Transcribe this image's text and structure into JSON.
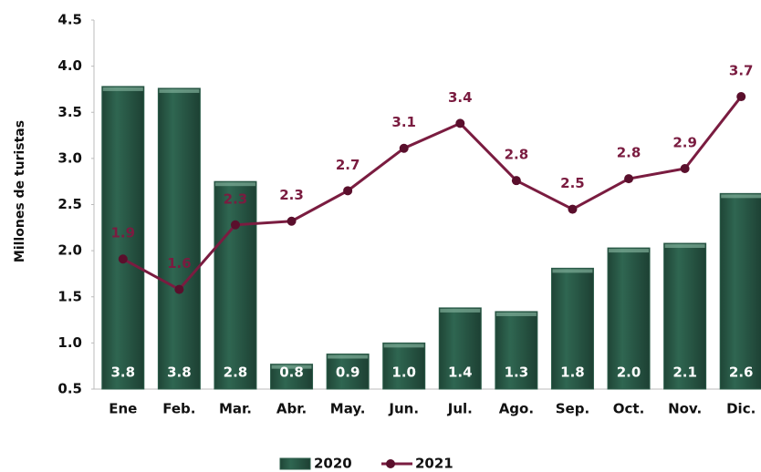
{
  "chart_data": {
    "type": "bar",
    "y_label": "Millones de turistas",
    "categories": [
      "Ene",
      "Feb.",
      "Mar.",
      "Abr.",
      "May.",
      "Jun.",
      "Jul.",
      "Ago.",
      "Sep.",
      "Oct.",
      "Nov.",
      "Dic."
    ],
    "series": [
      {
        "name": "2020",
        "type": "bar",
        "color": "#2b5c49",
        "values": [
          3.78,
          3.76,
          2.75,
          0.77,
          0.88,
          1.0,
          1.38,
          1.34,
          1.81,
          2.03,
          2.08,
          2.62
        ],
        "value_labels": [
          "3.8",
          "3.8",
          "2.8",
          "0.8",
          "0.9",
          "1.0",
          "1.4",
          "1.3",
          "1.8",
          "2.0",
          "2.1",
          "2.6"
        ]
      },
      {
        "name": "2021",
        "type": "line",
        "color": "#7a1c40",
        "values": [
          1.91,
          1.58,
          2.28,
          2.32,
          2.65,
          3.11,
          3.38,
          2.76,
          2.45,
          2.78,
          2.89,
          3.67
        ],
        "value_labels": [
          "1.9",
          "1.6",
          "2.3",
          "2.3",
          "2.7",
          "3.1",
          "3.4",
          "2.8",
          "2.5",
          "2.8",
          "2.9",
          "3.7"
        ]
      }
    ],
    "ylim": [
      0.5,
      4.5
    ],
    "yticks": [
      0.5,
      {
        "value": 1,
        "label": "1.0"
      },
      1.5,
      {
        "value": 2,
        "label": "2.0"
      },
      2.5,
      {
        "value": 3,
        "label": "3.0"
      },
      3.5,
      {
        "value": 4,
        "label": "4.0"
      },
      4.5
    ],
    "grid": false,
    "legend": "bottom"
  }
}
